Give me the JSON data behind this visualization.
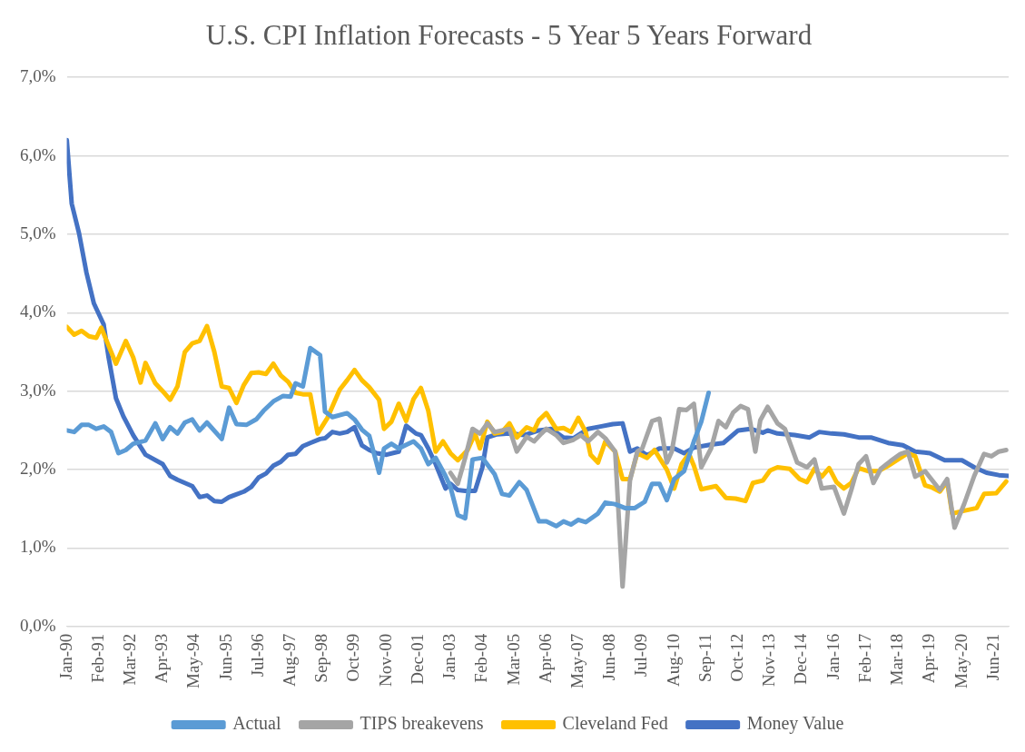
{
  "chart_data": {
    "type": "line",
    "title": "U.S. CPI Inflation Forecasts - 5 Year 5 Years Forward",
    "legend": "bottom",
    "grid": "y",
    "marker": "none",
    "line_style": "solid",
    "xlim": [
      "1990-01",
      "2021-12"
    ],
    "xticks": [
      {
        "value": "1990-01",
        "label": "Jan-90"
      },
      {
        "value": "1991-02",
        "label": "Feb-91"
      },
      {
        "value": "1992-03",
        "label": "Mar-92"
      },
      {
        "value": "1993-04",
        "label": "Apr-93"
      },
      {
        "value": "1994-05",
        "label": "May-94"
      },
      {
        "value": "1995-06",
        "label": "Jun-95"
      },
      {
        "value": "1996-07",
        "label": "Jul-96"
      },
      {
        "value": "1997-08",
        "label": "Aug-97"
      },
      {
        "value": "1998-09",
        "label": "Sep-98"
      },
      {
        "value": "1999-10",
        "label": "Oct-99"
      },
      {
        "value": "2000-11",
        "label": "Nov-00"
      },
      {
        "value": "2001-12",
        "label": "Dec-01"
      },
      {
        "value": "2003-01",
        "label": "Jan-03"
      },
      {
        "value": "2004-02",
        "label": "Feb-04"
      },
      {
        "value": "2005-03",
        "label": "Mar-05"
      },
      {
        "value": "2006-04",
        "label": "Apr-06"
      },
      {
        "value": "2007-05",
        "label": "May-07"
      },
      {
        "value": "2008-06",
        "label": "Jun-08"
      },
      {
        "value": "2009-07",
        "label": "Jul-09"
      },
      {
        "value": "2010-08",
        "label": "Aug-10"
      },
      {
        "value": "2011-09",
        "label": "Sep-11"
      },
      {
        "value": "2012-10",
        "label": "Oct-12"
      },
      {
        "value": "2013-11",
        "label": "Nov-13"
      },
      {
        "value": "2014-12",
        "label": "Dec-14"
      },
      {
        "value": "2016-01",
        "label": "Jan-16"
      },
      {
        "value": "2017-02",
        "label": "Feb-17"
      },
      {
        "value": "2018-03",
        "label": "Mar-18"
      },
      {
        "value": "2019-04",
        "label": "Apr-19"
      },
      {
        "value": "2020-05",
        "label": "May-20"
      },
      {
        "value": "2021-06",
        "label": "Jun-21"
      }
    ],
    "ylim": [
      0,
      7
    ],
    "yticks": [
      {
        "value": 0,
        "label": "0,0%"
      },
      {
        "value": 1,
        "label": "1,0%"
      },
      {
        "value": 2,
        "label": "2,0%"
      },
      {
        "value": 3,
        "label": "3,0%"
      },
      {
        "value": 4,
        "label": "4,0%"
      },
      {
        "value": 5,
        "label": "5,0%"
      },
      {
        "value": 6,
        "label": "6,0%"
      },
      {
        "value": 7,
        "label": "7,0%"
      }
    ],
    "series": [
      {
        "name": "Actual",
        "color": "#5b9bd5",
        "x": [
          "1990-01",
          "1990-04",
          "1990-07",
          "1990-10",
          "1991-01",
          "1991-04",
          "1991-07",
          "1991-10",
          "1992-01",
          "1992-04",
          "1992-09",
          "1993-01",
          "1993-04",
          "1993-07",
          "1993-10",
          "1994-01",
          "1994-04",
          "1994-07",
          "1994-10",
          "1995-04",
          "1995-07",
          "1995-10",
          "1996-02",
          "1996-06",
          "1996-09",
          "1997-01",
          "1997-05",
          "1997-08",
          "1997-10",
          "1998-01",
          "1998-04",
          "1998-08",
          "1998-10",
          "1999-01",
          "1999-07",
          "1999-10",
          "2000-01",
          "2000-04",
          "2000-08",
          "2000-10",
          "2001-01",
          "2001-04",
          "2001-08",
          "2001-10",
          "2002-01",
          "2002-04",
          "2002-07",
          "2002-11",
          "2003-01",
          "2003-04",
          "2003-07",
          "2003-10",
          "2004-02",
          "2004-07",
          "2004-10",
          "2005-01",
          "2005-05",
          "2005-08",
          "2006-01",
          "2006-04",
          "2006-08",
          "2006-11",
          "2007-02",
          "2007-05",
          "2007-08",
          "2008-01",
          "2008-04",
          "2008-08",
          "2008-12",
          "2009-04",
          "2009-08",
          "2009-11",
          "2010-02",
          "2010-05",
          "2010-08",
          "2010-12",
          "2011-04",
          "2011-07",
          "2011-10"
        ],
        "values": [
          2.5,
          2.48,
          2.57,
          2.57,
          2.52,
          2.55,
          2.48,
          2.21,
          2.25,
          2.33,
          2.37,
          2.59,
          2.39,
          2.54,
          2.46,
          2.6,
          2.64,
          2.5,
          2.6,
          2.39,
          2.79,
          2.58,
          2.57,
          2.64,
          2.75,
          2.87,
          2.94,
          2.93,
          3.1,
          3.06,
          3.55,
          3.46,
          2.74,
          2.67,
          2.72,
          2.64,
          2.51,
          2.43,
          1.96,
          2.27,
          2.33,
          2.27,
          2.33,
          2.36,
          2.27,
          2.07,
          2.15,
          1.92,
          1.78,
          1.42,
          1.38,
          2.13,
          2.15,
          1.94,
          1.69,
          1.67,
          1.84,
          1.74,
          1.34,
          1.34,
          1.28,
          1.34,
          1.3,
          1.36,
          1.33,
          1.44,
          1.58,
          1.56,
          1.51,
          1.51,
          1.59,
          1.82,
          1.82,
          1.61,
          1.88,
          1.98,
          2.36,
          2.61,
          2.98
        ]
      },
      {
        "name": "TIPS breakevens",
        "color": "#a5a5a5",
        "x": [
          "2003-01",
          "2003-04",
          "2003-07",
          "2003-10",
          "2004-01",
          "2004-04",
          "2004-07",
          "2005-01",
          "2005-04",
          "2005-08",
          "2005-11",
          "2006-02",
          "2006-04",
          "2006-08",
          "2006-11",
          "2007-03",
          "2007-06",
          "2007-09",
          "2008-01",
          "2008-04",
          "2008-08",
          "2008-11",
          "2009-02",
          "2009-05",
          "2009-07",
          "2009-11",
          "2010-02",
          "2010-05",
          "2010-07",
          "2010-10",
          "2011-01",
          "2011-04",
          "2011-07",
          "2011-11",
          "2012-02",
          "2012-05",
          "2012-08",
          "2012-11",
          "2013-02",
          "2013-05",
          "2013-07",
          "2013-10",
          "2014-02",
          "2014-05",
          "2014-10",
          "2015-02",
          "2015-05",
          "2015-08",
          "2016-01",
          "2016-05",
          "2016-08",
          "2016-11",
          "2017-02",
          "2017-05",
          "2017-08",
          "2017-12",
          "2018-04",
          "2018-07",
          "2018-10",
          "2019-02",
          "2019-08",
          "2019-11",
          "2020-02",
          "2020-06",
          "2020-10",
          "2021-02",
          "2021-05",
          "2021-08",
          "2021-11"
        ],
        "values": [
          1.96,
          1.82,
          2.15,
          2.52,
          2.46,
          2.59,
          2.48,
          2.52,
          2.23,
          2.42,
          2.36,
          2.46,
          2.52,
          2.44,
          2.34,
          2.38,
          2.44,
          2.36,
          2.48,
          2.4,
          2.23,
          0.51,
          1.86,
          2.23,
          2.27,
          2.62,
          2.65,
          2.09,
          2.23,
          2.77,
          2.76,
          2.84,
          2.03,
          2.27,
          2.62,
          2.54,
          2.73,
          2.81,
          2.77,
          2.23,
          2.63,
          2.8,
          2.59,
          2.52,
          2.09,
          2.03,
          2.13,
          1.76,
          1.78,
          1.44,
          1.74,
          2.07,
          2.17,
          1.83,
          2.01,
          2.11,
          2.2,
          2.23,
          1.91,
          1.98,
          1.74,
          1.88,
          1.26,
          1.57,
          1.92,
          2.2,
          2.17,
          2.23,
          2.25
        ]
      },
      {
        "name": "Cleveland Fed",
        "color": "#ffc000",
        "x": [
          "1990-01",
          "1990-04",
          "1990-07",
          "1990-10",
          "1991-01",
          "1991-03",
          "1991-06",
          "1991-09",
          "1992-01",
          "1992-04",
          "1992-07",
          "1992-09",
          "1993-01",
          "1993-04",
          "1993-07",
          "1993-10",
          "1994-01",
          "1994-04",
          "1994-07",
          "1994-10",
          "1995-01",
          "1995-04",
          "1995-07",
          "1995-10",
          "1996-01",
          "1996-04",
          "1996-07",
          "1996-10",
          "1997-01",
          "1997-04",
          "1997-07",
          "1997-10",
          "1998-01",
          "1998-04",
          "1998-07",
          "1998-11",
          "1999-04",
          "1999-07",
          "1999-10",
          "2000-01",
          "2000-04",
          "2000-08",
          "2000-10",
          "2001-01",
          "2001-04",
          "2001-07",
          "2001-10",
          "2002-01",
          "2002-04",
          "2002-07",
          "2002-10",
          "2003-01",
          "2003-04",
          "2003-08",
          "2003-11",
          "2004-01",
          "2004-04",
          "2004-07",
          "2004-10",
          "2005-01",
          "2005-04",
          "2005-08",
          "2005-11",
          "2006-01",
          "2006-04",
          "2006-08",
          "2006-11",
          "2007-02",
          "2007-05",
          "2007-08",
          "2007-10",
          "2008-01",
          "2008-04",
          "2008-08",
          "2008-11",
          "2009-02",
          "2009-05",
          "2009-09",
          "2009-12",
          "2010-05",
          "2010-08",
          "2010-11",
          "2011-02",
          "2011-04",
          "2011-07",
          "2012-01",
          "2012-05",
          "2012-09",
          "2013-01",
          "2013-04",
          "2013-08",
          "2013-11",
          "2014-02",
          "2014-07",
          "2014-11",
          "2015-02",
          "2015-05",
          "2015-08",
          "2015-11",
          "2016-02",
          "2016-05",
          "2016-08",
          "2016-11",
          "2017-03",
          "2017-07",
          "2017-11",
          "2018-02",
          "2018-07",
          "2018-10",
          "2019-02",
          "2019-05",
          "2019-08",
          "2019-11",
          "2020-01",
          "2020-05",
          "2020-11",
          "2021-02",
          "2021-07",
          "2021-11"
        ],
        "values": [
          3.82,
          3.72,
          3.77,
          3.7,
          3.68,
          3.81,
          3.58,
          3.35,
          3.64,
          3.43,
          3.11,
          3.36,
          3.1,
          3.0,
          2.89,
          3.06,
          3.5,
          3.61,
          3.64,
          3.83,
          3.5,
          3.06,
          3.04,
          2.85,
          3.08,
          3.23,
          3.24,
          3.22,
          3.35,
          3.2,
          3.12,
          2.98,
          2.96,
          2.96,
          2.46,
          2.66,
          3.02,
          3.14,
          3.27,
          3.14,
          3.05,
          2.89,
          2.52,
          2.61,
          2.84,
          2.62,
          2.9,
          3.04,
          2.75,
          2.23,
          2.36,
          2.21,
          2.12,
          2.25,
          2.46,
          2.27,
          2.61,
          2.46,
          2.48,
          2.59,
          2.41,
          2.54,
          2.5,
          2.63,
          2.72,
          2.52,
          2.53,
          2.48,
          2.66,
          2.48,
          2.19,
          2.09,
          2.36,
          2.23,
          1.88,
          1.88,
          2.21,
          2.15,
          2.25,
          2.0,
          1.76,
          2.07,
          2.2,
          2.05,
          1.75,
          1.79,
          1.64,
          1.63,
          1.6,
          1.83,
          1.86,
          1.99,
          2.03,
          2.01,
          1.88,
          1.84,
          2.01,
          1.91,
          2.02,
          1.84,
          1.76,
          1.83,
          2.02,
          1.98,
          1.98,
          2.05,
          2.11,
          2.21,
          2.17,
          1.8,
          1.77,
          1.72,
          1.85,
          1.44,
          1.47,
          1.51,
          1.69,
          1.7,
          1.85
        ]
      },
      {
        "name": "Money Value",
        "color": "#4472c4",
        "x": [
          "1990-01",
          "1990-03",
          "1990-06",
          "1990-09",
          "1990-12",
          "1991-04",
          "1991-06",
          "1991-09",
          "1991-12",
          "1992-04",
          "1992-09",
          "1993-04",
          "1993-07",
          "1993-10",
          "1994-04",
          "1994-07",
          "1994-10",
          "1995-01",
          "1995-04",
          "1995-07",
          "1996-01",
          "1996-04",
          "1996-07",
          "1996-10",
          "1997-01",
          "1997-04",
          "1997-07",
          "1997-10",
          "1998-01",
          "1998-04",
          "1998-08",
          "1998-10",
          "1999-01",
          "1999-04",
          "1999-07",
          "1999-10",
          "2000-01",
          "2000-04",
          "2000-07",
          "2000-11",
          "2001-04",
          "2001-07",
          "2001-11",
          "2002-01",
          "2002-04",
          "2002-07",
          "2002-11",
          "2003-01",
          "2003-04",
          "2003-07",
          "2003-11",
          "2004-02",
          "2004-04",
          "2004-08",
          "2005-01",
          "2005-07",
          "2006-01",
          "2006-06",
          "2006-11",
          "2007-03",
          "2007-09",
          "2008-02",
          "2008-07",
          "2008-11",
          "2009-02",
          "2009-05",
          "2009-09",
          "2010-02",
          "2010-08",
          "2010-12",
          "2011-04",
          "2011-11",
          "2012-04",
          "2012-10",
          "2013-03",
          "2013-08",
          "2013-10",
          "2014-02",
          "2014-09",
          "2015-03",
          "2015-07",
          "2015-12",
          "2016-05",
          "2016-11",
          "2017-04",
          "2017-11",
          "2018-05",
          "2018-10",
          "2019-04",
          "2019-10",
          "2020-05",
          "2020-10",
          "2021-03",
          "2021-08",
          "2021-12"
        ],
        "values": [
          6.2,
          5.39,
          5.01,
          4.51,
          4.12,
          3.85,
          3.43,
          2.91,
          2.68,
          2.44,
          2.19,
          2.07,
          1.92,
          1.87,
          1.79,
          1.65,
          1.67,
          1.6,
          1.59,
          1.65,
          1.72,
          1.78,
          1.9,
          1.95,
          2.05,
          2.1,
          2.19,
          2.2,
          2.3,
          2.34,
          2.39,
          2.4,
          2.48,
          2.46,
          2.48,
          2.54,
          2.31,
          2.25,
          2.21,
          2.19,
          2.23,
          2.56,
          2.46,
          2.44,
          2.27,
          2.07,
          1.76,
          1.82,
          1.74,
          1.73,
          1.73,
          2.03,
          2.41,
          2.45,
          2.46,
          2.44,
          2.5,
          2.52,
          2.41,
          2.4,
          2.52,
          2.55,
          2.58,
          2.59,
          2.23,
          2.27,
          2.18,
          2.27,
          2.27,
          2.21,
          2.28,
          2.32,
          2.34,
          2.5,
          2.52,
          2.47,
          2.5,
          2.46,
          2.44,
          2.41,
          2.48,
          2.46,
          2.45,
          2.41,
          2.41,
          2.34,
          2.31,
          2.23,
          2.21,
          2.12,
          2.12,
          2.03,
          1.96,
          1.93,
          1.92
        ]
      }
    ]
  }
}
